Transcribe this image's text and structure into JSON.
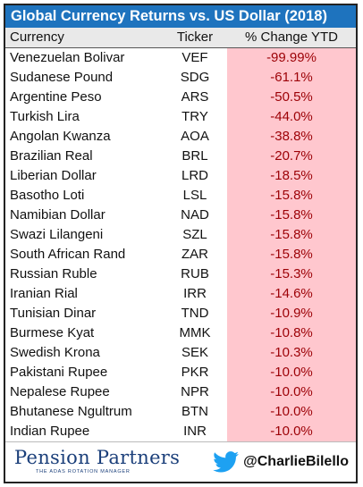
{
  "title": "Global Currency Returns vs. US Dollar (2018)",
  "columns": {
    "currency": "Currency",
    "ticker": "Ticker",
    "change": "% Change YTD"
  },
  "rows": [
    {
      "currency": "Venezuelan Bolivar",
      "ticker": "VEF",
      "change": "-99.99%"
    },
    {
      "currency": "Sudanese Pound",
      "ticker": "SDG",
      "change": "-61.1%"
    },
    {
      "currency": "Argentine Peso",
      "ticker": "ARS",
      "change": "-50.5%"
    },
    {
      "currency": "Turkish Lira",
      "ticker": "TRY",
      "change": "-44.0%"
    },
    {
      "currency": "Angolan Kwanza",
      "ticker": "AOA",
      "change": "-38.8%"
    },
    {
      "currency": "Brazilian Real",
      "ticker": "BRL",
      "change": "-20.7%"
    },
    {
      "currency": "Liberian Dollar",
      "ticker": "LRD",
      "change": "-18.5%"
    },
    {
      "currency": "Basotho Loti",
      "ticker": "LSL",
      "change": "-15.8%"
    },
    {
      "currency": "Namibian Dollar",
      "ticker": "NAD",
      "change": "-15.8%"
    },
    {
      "currency": "Swazi Lilangeni",
      "ticker": "SZL",
      "change": "-15.8%"
    },
    {
      "currency": "South African Rand",
      "ticker": "ZAR",
      "change": "-15.8%"
    },
    {
      "currency": "Russian Ruble",
      "ticker": "RUB",
      "change": "-15.3%"
    },
    {
      "currency": "Iranian Rial",
      "ticker": "IRR",
      "change": "-14.6%"
    },
    {
      "currency": "Tunisian Dinar",
      "ticker": "TND",
      "change": "-10.9%"
    },
    {
      "currency": "Burmese Kyat",
      "ticker": "MMK",
      "change": "-10.8%"
    },
    {
      "currency": "Swedish Krona",
      "ticker": "SEK",
      "change": "-10.3%"
    },
    {
      "currency": "Pakistani Rupee",
      "ticker": "PKR",
      "change": "-10.0%"
    },
    {
      "currency": "Nepalese Rupee",
      "ticker": "NPR",
      "change": "-10.0%"
    },
    {
      "currency": "Bhutanese Ngultrum",
      "ticker": "BTN",
      "change": "-10.0%"
    },
    {
      "currency": "Indian Rupee",
      "ticker": "INR",
      "change": "-10.0%"
    }
  ],
  "footer": {
    "logo_text": "Pension Partners",
    "logo_subtext": "THE ADAS ROTATION MANAGER",
    "handle": "@CharlieBilello",
    "twitter_icon": "twitter-bird-icon"
  },
  "colors": {
    "title_bg": "#1e73be",
    "negative_bg": "#ffc7ce",
    "negative_text": "#9c0006"
  }
}
